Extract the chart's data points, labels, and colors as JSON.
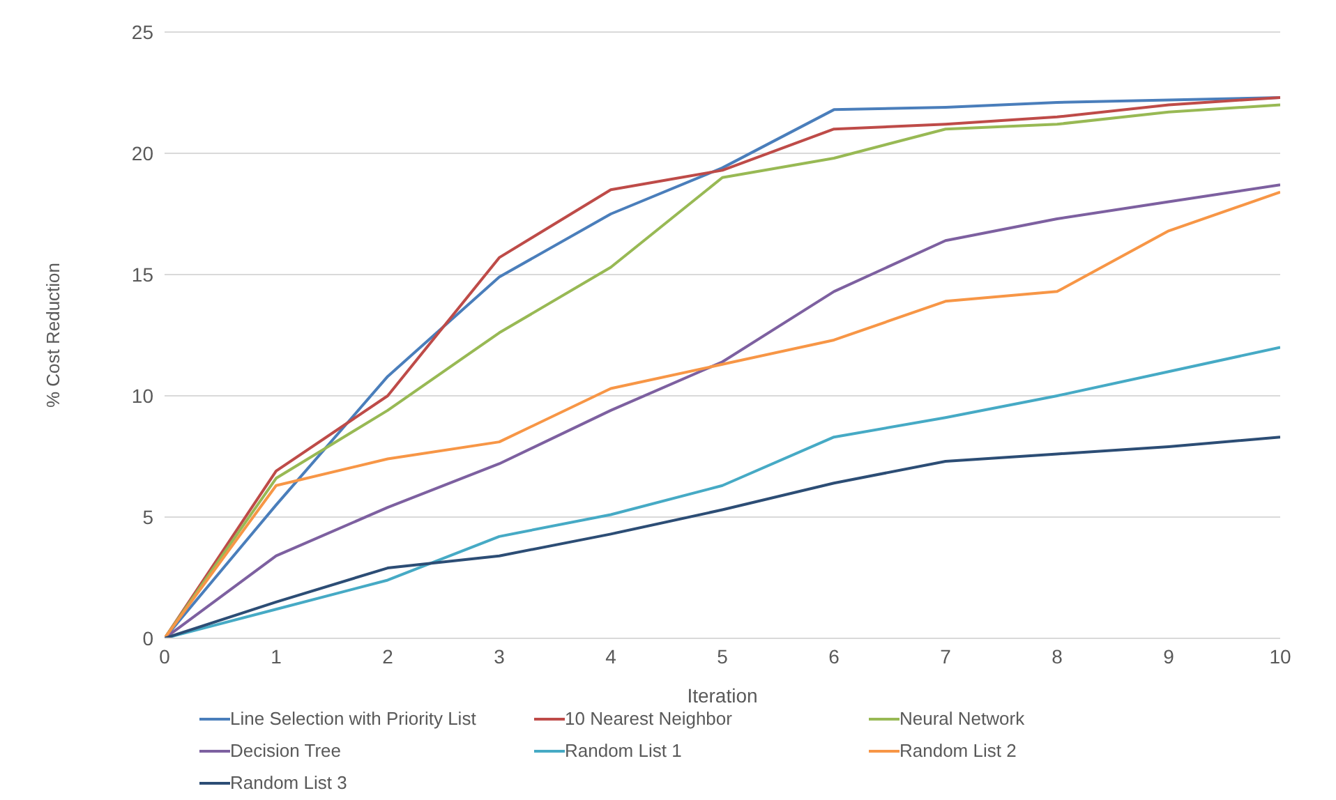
{
  "chart_data": {
    "type": "line",
    "xlabel": "Iteration",
    "ylabel": "% Cost Reduction",
    "x": [
      0,
      1,
      2,
      3,
      4,
      5,
      6,
      7,
      8,
      9,
      10
    ],
    "xlim": [
      0,
      10
    ],
    "xticks": [
      0,
      1,
      2,
      3,
      4,
      5,
      6,
      7,
      8,
      9,
      10
    ],
    "ylim": [
      0,
      25
    ],
    "yticks": [
      0,
      5,
      10,
      15,
      20,
      25
    ],
    "grid": "y",
    "legend": "bottom",
    "marker": "none",
    "series": [
      {
        "name": "Line Selection with Priority List",
        "color": "#4a7ebb",
        "values": [
          0,
          5.5,
          10.8,
          14.9,
          17.5,
          19.4,
          21.8,
          21.9,
          22.1,
          22.2,
          22.3
        ]
      },
      {
        "name": "10 Nearest Neighbor",
        "color": "#be4b48",
        "values": [
          0,
          6.9,
          10.0,
          15.7,
          18.5,
          19.3,
          21.0,
          21.2,
          21.5,
          22.0,
          22.3
        ]
      },
      {
        "name": "Neural Network",
        "color": "#98b954",
        "values": [
          0,
          6.6,
          9.4,
          12.6,
          15.3,
          19.0,
          19.8,
          21.0,
          21.2,
          21.7,
          22.0
        ]
      },
      {
        "name": "Decision Tree",
        "color": "#7d60a0",
        "values": [
          0,
          3.4,
          5.4,
          7.2,
          9.4,
          11.4,
          14.3,
          16.4,
          17.3,
          18.0,
          18.7
        ]
      },
      {
        "name": "Random List 1",
        "color": "#46aac5",
        "values": [
          0,
          1.2,
          2.4,
          4.2,
          5.1,
          6.3,
          8.3,
          9.1,
          10.0,
          11.0,
          12.0
        ]
      },
      {
        "name": "Random List 2",
        "color": "#f79646",
        "values": [
          0,
          6.3,
          7.4,
          8.1,
          10.3,
          11.3,
          12.3,
          13.9,
          14.3,
          16.8,
          18.4
        ]
      },
      {
        "name": "Random List 3",
        "color": "#2c4d75",
        "values": [
          0,
          1.5,
          2.9,
          3.4,
          4.3,
          5.3,
          6.4,
          7.3,
          7.6,
          7.9,
          8.3
        ]
      }
    ]
  }
}
